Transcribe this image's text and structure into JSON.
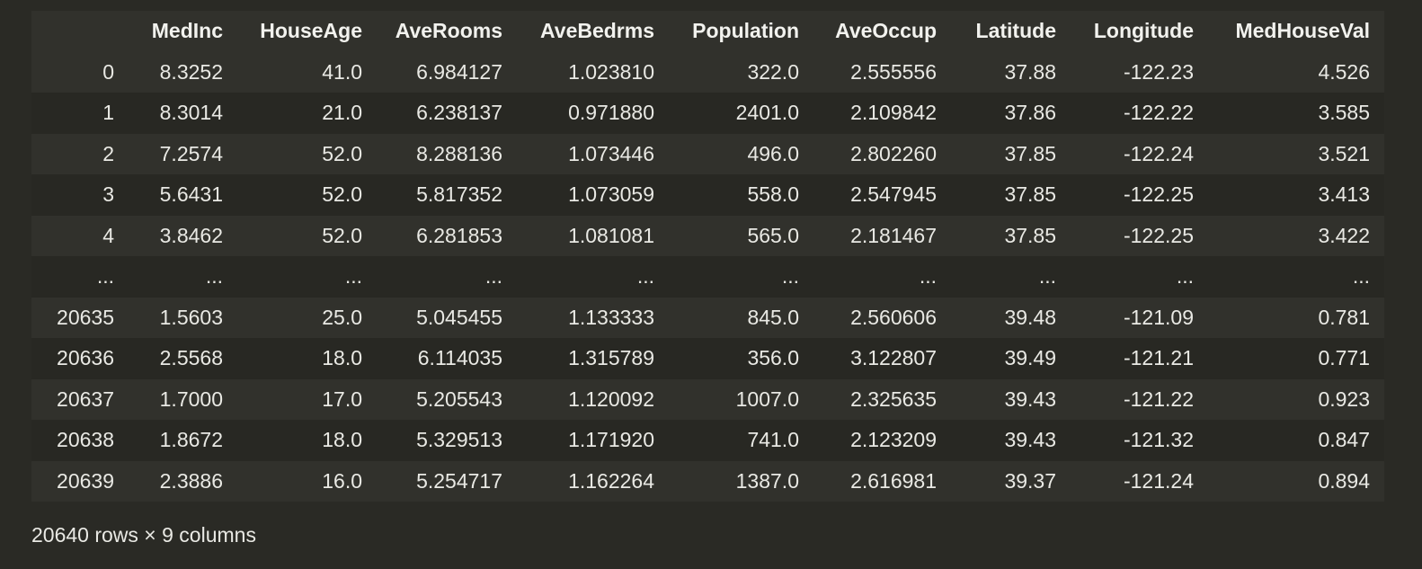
{
  "table": {
    "columns": [
      "",
      "MedInc",
      "HouseAge",
      "AveRooms",
      "AveBedrms",
      "Population",
      "AveOccup",
      "Latitude",
      "Longitude",
      "MedHouseVal"
    ],
    "rows": [
      [
        "0",
        "8.3252",
        "41.0",
        "6.984127",
        "1.023810",
        "322.0",
        "2.555556",
        "37.88",
        "-122.23",
        "4.526"
      ],
      [
        "1",
        "8.3014",
        "21.0",
        "6.238137",
        "0.971880",
        "2401.0",
        "2.109842",
        "37.86",
        "-122.22",
        "3.585"
      ],
      [
        "2",
        "7.2574",
        "52.0",
        "8.288136",
        "1.073446",
        "496.0",
        "2.802260",
        "37.85",
        "-122.24",
        "3.521"
      ],
      [
        "3",
        "5.6431",
        "52.0",
        "5.817352",
        "1.073059",
        "558.0",
        "2.547945",
        "37.85",
        "-122.25",
        "3.413"
      ],
      [
        "4",
        "3.8462",
        "52.0",
        "6.281853",
        "1.081081",
        "565.0",
        "2.181467",
        "37.85",
        "-122.25",
        "3.422"
      ],
      [
        "...",
        "...",
        "...",
        "...",
        "...",
        "...",
        "...",
        "...",
        "...",
        "..."
      ],
      [
        "20635",
        "1.5603",
        "25.0",
        "5.045455",
        "1.133333",
        "845.0",
        "2.560606",
        "39.48",
        "-121.09",
        "0.781"
      ],
      [
        "20636",
        "2.5568",
        "18.0",
        "6.114035",
        "1.315789",
        "356.0",
        "3.122807",
        "39.49",
        "-121.21",
        "0.771"
      ],
      [
        "20637",
        "1.7000",
        "17.0",
        "5.205543",
        "1.120092",
        "1007.0",
        "2.325635",
        "39.43",
        "-121.22",
        "0.923"
      ],
      [
        "20638",
        "1.8672",
        "18.0",
        "5.329513",
        "1.171920",
        "741.0",
        "2.123209",
        "39.43",
        "-121.32",
        "0.847"
      ],
      [
        "20639",
        "2.3886",
        "16.0",
        "5.254717",
        "1.162264",
        "1387.0",
        "2.616981",
        "39.37",
        "-121.24",
        "0.894"
      ]
    ]
  },
  "shape_text": "20640 rows × 9 columns"
}
